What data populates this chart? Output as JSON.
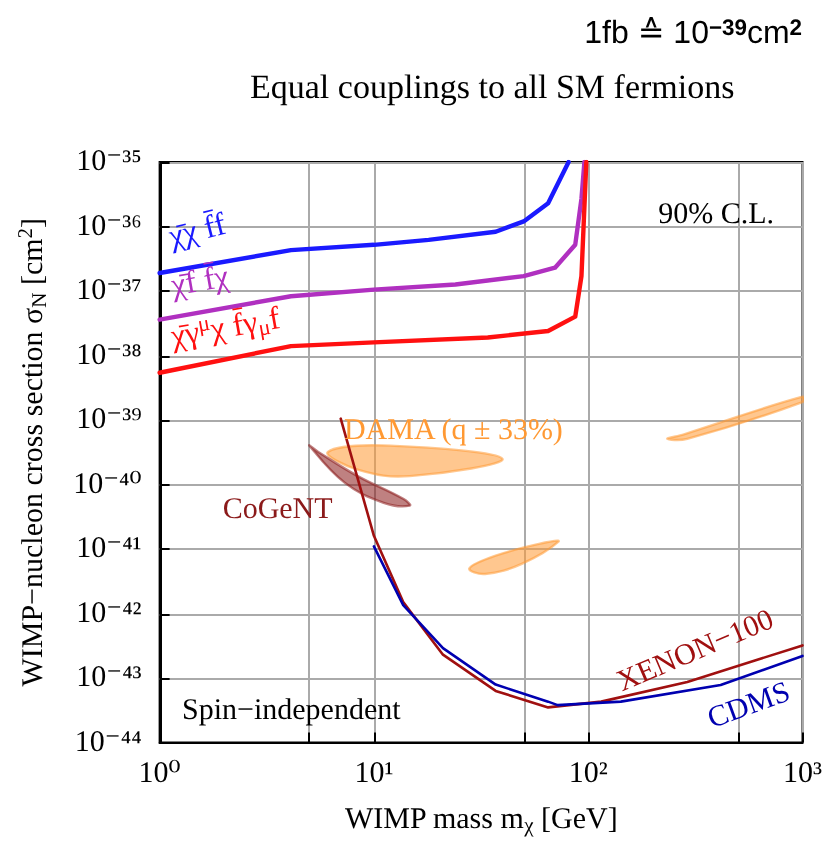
{
  "chart_data": {
    "type": "line",
    "title": "Equal couplings to all SM fermions",
    "subtitle": "1fb ≙ 10$^{−39}$cm$^{2}$",
    "xlabel": "WIMP mass m$_{χ}$ [GeV]",
    "ylabel": "WIMP−nucleon cross section σ$_{N}$ [cm$^{2}$]",
    "annotations": [
      "90% C.L.",
      "Spin−independent"
    ],
    "log": "xy",
    "grid": true,
    "marker": "none",
    "xlim": [
      1,
      1000
    ],
    "ylim": [
      1e-44,
      1e-35
    ],
    "xticks": [
      {
        "value": 1,
        "label": "10⁰"
      },
      {
        "value": 5,
        "label": null
      },
      {
        "value": 10,
        "label": "10¹"
      },
      {
        "value": 50,
        "label": null
      },
      {
        "value": 100,
        "label": "10²"
      },
      {
        "value": 500,
        "label": null
      },
      {
        "value": 1000,
        "label": "10³"
      }
    ],
    "yticks": [
      {
        "value": 1e-44,
        "label": "10⁻⁴⁴"
      },
      {
        "value": 1e-43,
        "label": "10⁻⁴³"
      },
      {
        "value": 1e-42,
        "label": "10⁻⁴²"
      },
      {
        "value": 1e-41,
        "label": "10⁻⁴¹"
      },
      {
        "value": 1e-40,
        "label": "10⁻⁴⁰"
      },
      {
        "value": 1e-39,
        "label": "10⁻³⁹"
      },
      {
        "value": 1e-38,
        "label": "10⁻³⁸"
      },
      {
        "value": 1e-37,
        "label": "10⁻³⁷"
      },
      {
        "value": 1e-36,
        "label": "10⁻³⁶"
      },
      {
        "value": 1e-35,
        "label": "10⁻³⁵"
      }
    ],
    "series": [
      {
        "name": "χ̄χ f̄f",
        "color": "#1a1aff",
        "x": [
          1,
          4.1,
          10,
          18,
          37,
          50,
          65,
          81
        ],
        "values": [
          1.9e-37,
          4.3e-37,
          5.2e-37,
          6.2e-37,
          8.3e-37,
          1.2e-36,
          2.3e-36,
          1e-35
        ]
      },
      {
        "name": "χ̄f f̄χ",
        "color": "#b030c0",
        "x": [
          1,
          4.1,
          10,
          24,
          50,
          70,
          87,
          93,
          96
        ],
        "values": [
          3.6e-38,
          8.3e-38,
          1.05e-37,
          1.26e-37,
          1.7e-37,
          2.3e-37,
          5.2e-37,
          2.7e-36,
          1e-35
        ]
      },
      {
        "name": "χ̄γ$^{μ}$χ f̄γ$_{μ}$f",
        "color": "#ff1010",
        "x": [
          1,
          4.1,
          10,
          34,
          65,
          87,
          93,
          98
        ],
        "values": [
          5.4e-39,
          1.4e-38,
          1.6e-38,
          1.9e-38,
          2.4e-38,
          4e-38,
          1.7e-37,
          1e-35
        ]
      },
      {
        "name": "XENON−100",
        "color": "#a01010",
        "x": [
          7,
          10,
          13.7,
          21,
          37,
          65,
          115,
          290,
          1000
        ],
        "values": [
          1.05e-39,
          1.6e-41,
          1.5e-42,
          2.3e-43,
          6.3e-44,
          3.5e-44,
          4.3e-44,
          8.7e-44,
          3.2e-43
        ]
      },
      {
        "name": "CDMS",
        "color": "#0000b0",
        "x": [
          10,
          13.7,
          21,
          37,
          65,
          72,
          142,
          415,
          1000
        ],
        "values": [
          1.1e-41,
          1.35e-42,
          2.9e-43,
          7.9e-44,
          4.3e-44,
          3.8e-44,
          4.3e-44,
          7.8e-44,
          2.2e-43
        ]
      },
      {
        "type": "area",
        "name": "DAMA (q ± 33%)",
        "color": "#ff9933",
        "x": [
          6.1,
          11.9,
          39.8,
          14.7,
          8.4
        ],
        "values": [
          3.2e-40,
          4e-40,
          2.5e-40,
          1.35e-40,
          1.7e-40
        ]
      },
      {
        "type": "area",
        "color": "#ff9933",
        "x": [
          27.9,
          33,
          49,
          72.6,
          63,
          37
        ],
        "values": [
          5e-42,
          4.1e-42,
          5.9e-42,
          1.3e-41,
          1.26e-41,
          7.9e-42
        ]
      },
      {
        "type": "area",
        "color": "#ff9933",
        "x": [
          234,
          280,
          1000,
          1000,
          290
        ],
        "values": [
          5.1e-40,
          6e-40,
          2.3e-39,
          1.9e-39,
          5.1e-40
        ]
      },
      {
        "type": "area",
        "name": "CoGeNT",
        "color": "#8b1a1a",
        "x": [
          5,
          5.5,
          8.4,
          13.7,
          14.7,
          11.1,
          7.3
        ],
        "values": [
          4e-40,
          3.2e-40,
          1.35e-40,
          6e-41,
          4.7e-41,
          5.2e-41,
          1.07e-40
        ]
      }
    ]
  }
}
